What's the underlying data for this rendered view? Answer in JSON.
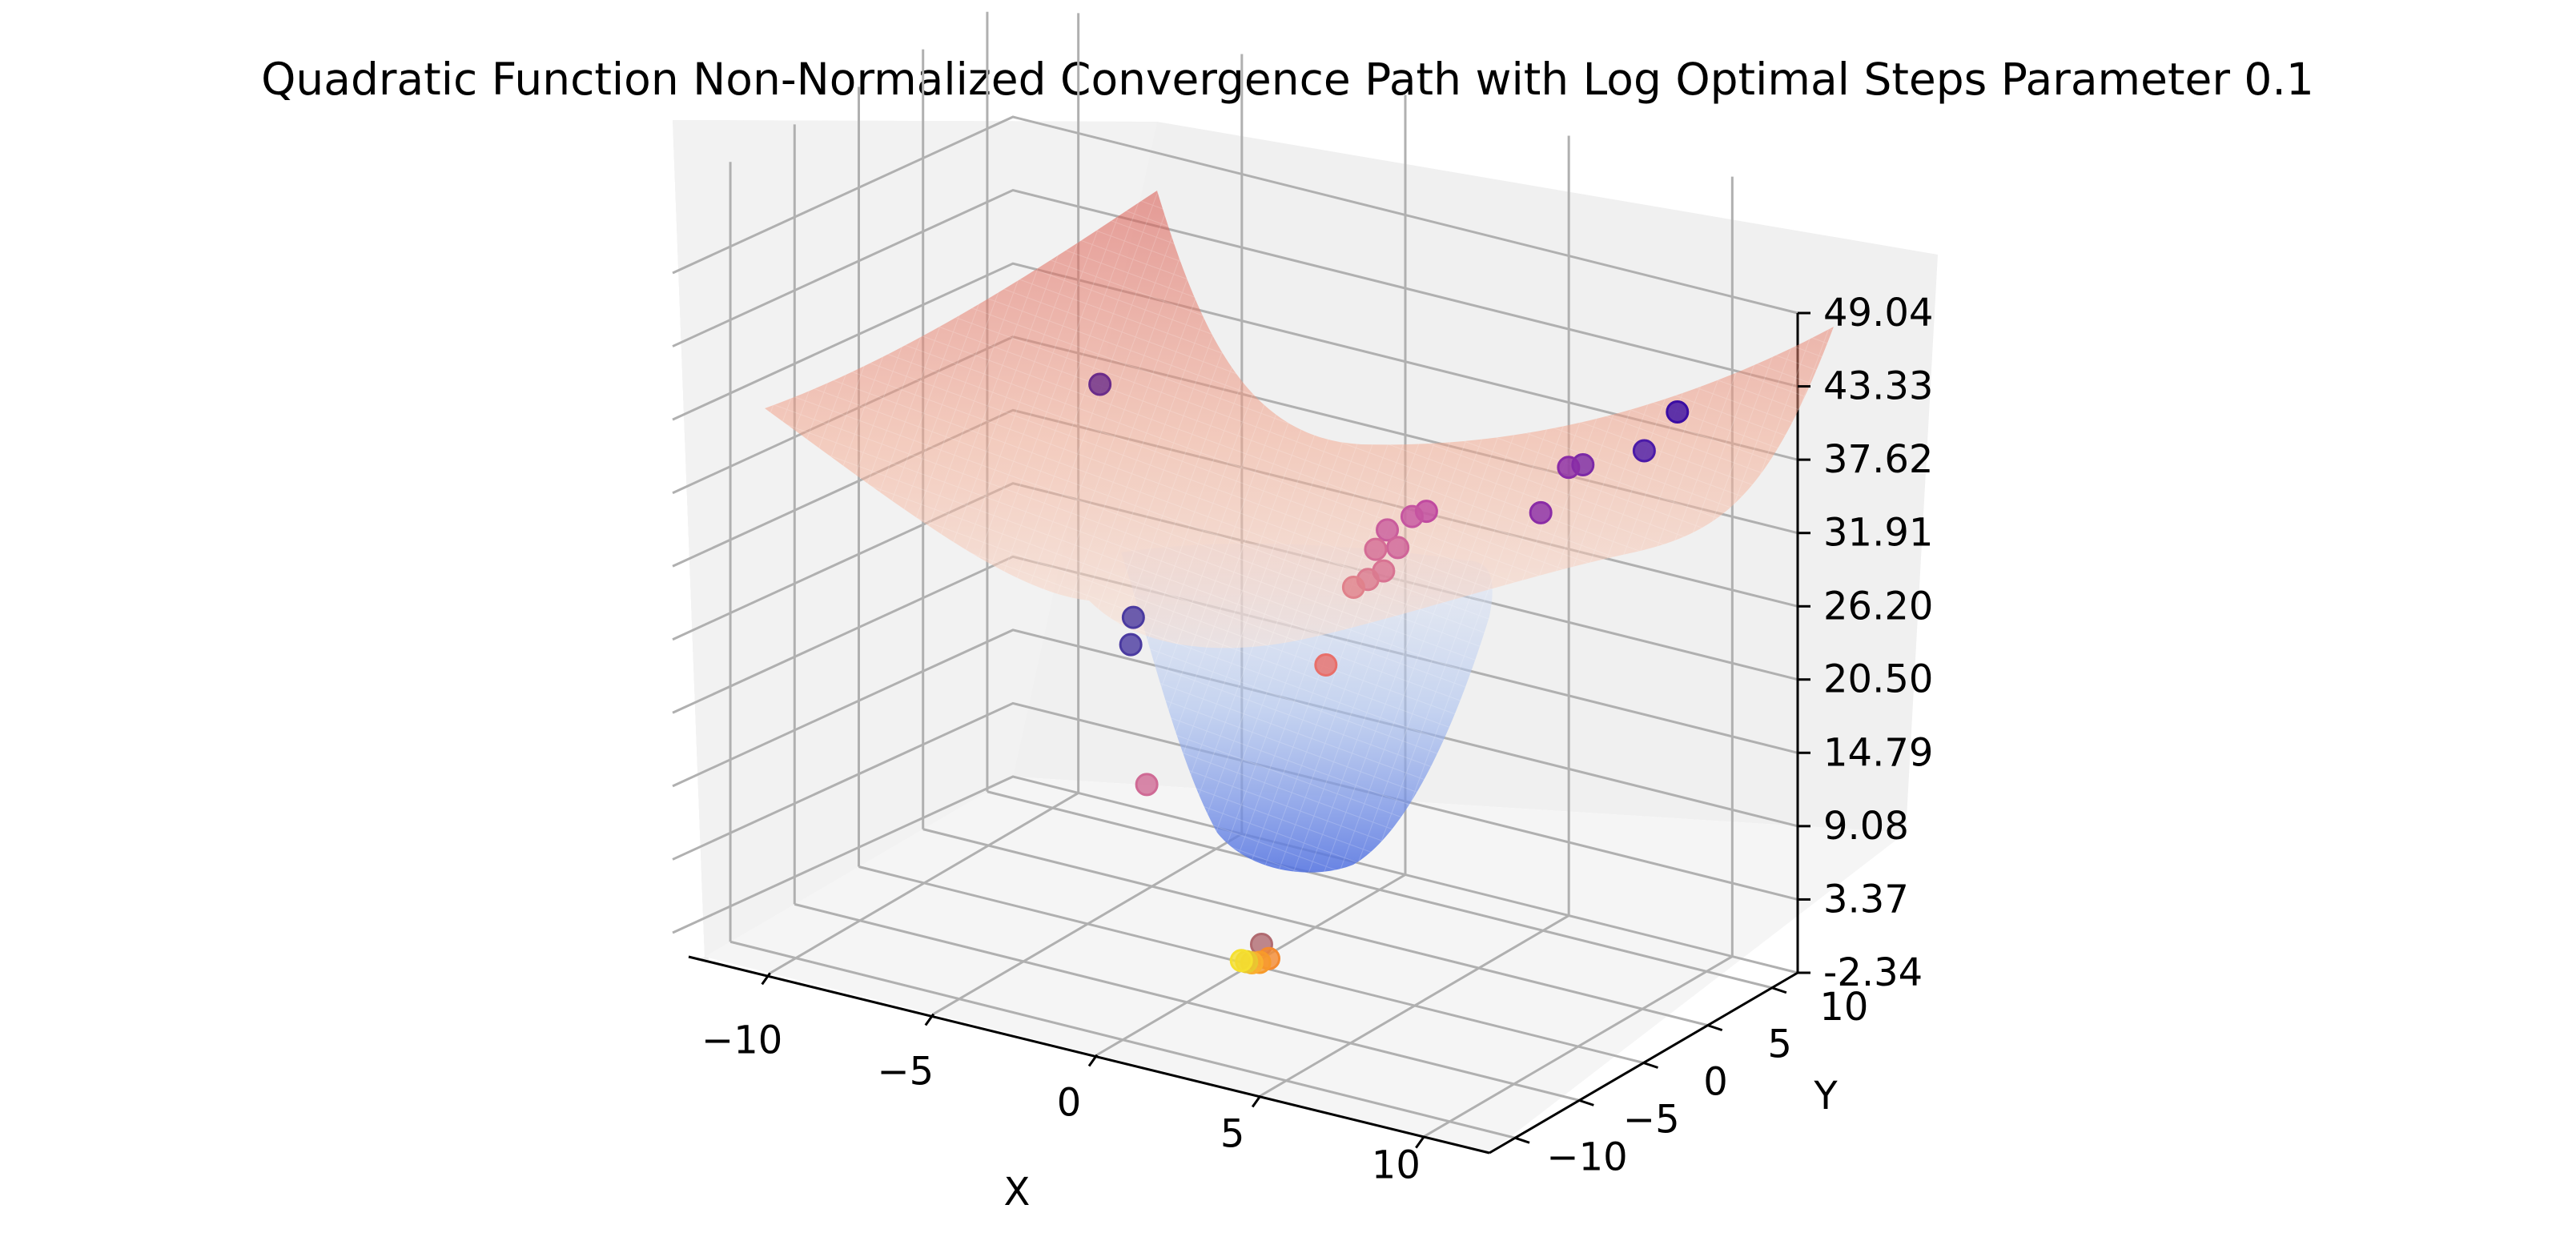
{
  "chart_data": {
    "type": "scatter",
    "title": "Quadratic Function Non-Normalized Convergence Path with Log Optimal Steps Parameter 0.1",
    "xlabel": "X",
    "ylabel": "Y",
    "zlabel": "",
    "xlim": [
      -12,
      12
    ],
    "ylim": [
      -12,
      12
    ],
    "zlim": [
      -2.34,
      49.04
    ],
    "x_ticks": [
      "−10",
      "−5",
      "0",
      "5",
      "10"
    ],
    "y_ticks": [
      "−10",
      "−5",
      "0",
      "5",
      "10"
    ],
    "z_ticks": [
      "-2.34",
      "3.37",
      "9.08",
      "14.79",
      "20.50",
      "26.20",
      "31.91",
      "37.62",
      "43.33",
      "49.04"
    ],
    "grid": true,
    "surfaces": [
      {
        "name": "",
        "colormap": "coolwarm (lower half, blue)",
        "description_values": {
          "min_z": -2.34,
          "max_z": 24
        }
      },
      {
        "name": "",
        "colormap": "coolwarm (upper half, red)",
        "description_values": {
          "min_z": 20,
          "max_z": 49
        }
      }
    ],
    "points": [
      {
        "x": 9.5,
        "y": 9.0,
        "z": 41.5,
        "color": "#3a0ca3"
      },
      {
        "x": 8.8,
        "y": 8.2,
        "z": 38.5,
        "color": "#4b1aa8"
      },
      {
        "x": 7.2,
        "y": 7.5,
        "z": 36.8,
        "color": "#7b2aa6"
      },
      {
        "x": 6.8,
        "y": 7.4,
        "z": 36.4,
        "color": "#8a2ca6"
      },
      {
        "x": 6.5,
        "y": 6.0,
        "z": 33.5,
        "color": "#8a2ca6"
      },
      {
        "x": 3.2,
        "y": 5.5,
        "z": 31.8,
        "color": "#c04aa0"
      },
      {
        "x": 2.8,
        "y": 5.4,
        "z": 31.2,
        "color": "#c555a0"
      },
      {
        "x": 2.2,
        "y": 5.0,
        "z": 30.0,
        "color": "#c95c9c"
      },
      {
        "x": 2.6,
        "y": 4.8,
        "z": 29.0,
        "color": "#cf6499"
      },
      {
        "x": 2.0,
        "y": 4.6,
        "z": 28.6,
        "color": "#d46c95"
      },
      {
        "x": 2.4,
        "y": 4.2,
        "z": 27.4,
        "color": "#d87392"
      },
      {
        "x": 2.0,
        "y": 4.0,
        "z": 26.6,
        "color": "#db7a8f"
      },
      {
        "x": 1.6,
        "y": 3.9,
        "z": 25.8,
        "color": "#e0818b"
      },
      {
        "x": 1.5,
        "y": 2.0,
        "z": 20.8,
        "color": "#e86f6a"
      },
      {
        "x": -6.0,
        "y": 3.5,
        "z": 37.0,
        "color": "#6a2c8a"
      },
      {
        "x": -3.8,
        "y": 0.5,
        "z": 22.0,
        "color": "#4a3aa0"
      },
      {
        "x": -3.8,
        "y": 0.3,
        "z": 20.0,
        "color": "#4a3aa0"
      },
      {
        "x": -2.8,
        "y": -1.0,
        "z": 10.5,
        "color": "#cf6a95"
      },
      {
        "x": 0.2,
        "y": 0.3,
        "z": -0.8,
        "color": "#b06a70"
      },
      {
        "x": 0.5,
        "y": 0.1,
        "z": -1.6,
        "color": "#f48a30"
      },
      {
        "x": 0.3,
        "y": -0.1,
        "z": -1.9,
        "color": "#f79a2a"
      },
      {
        "x": 0.1,
        "y": -0.2,
        "z": -2.0,
        "color": "#f9b030"
      },
      {
        "x": -0.1,
        "y": -0.1,
        "z": -2.1,
        "color": "#e8c830"
      },
      {
        "x": -0.3,
        "y": 0.0,
        "z": -2.2,
        "color": "#f5e030"
      }
    ]
  }
}
